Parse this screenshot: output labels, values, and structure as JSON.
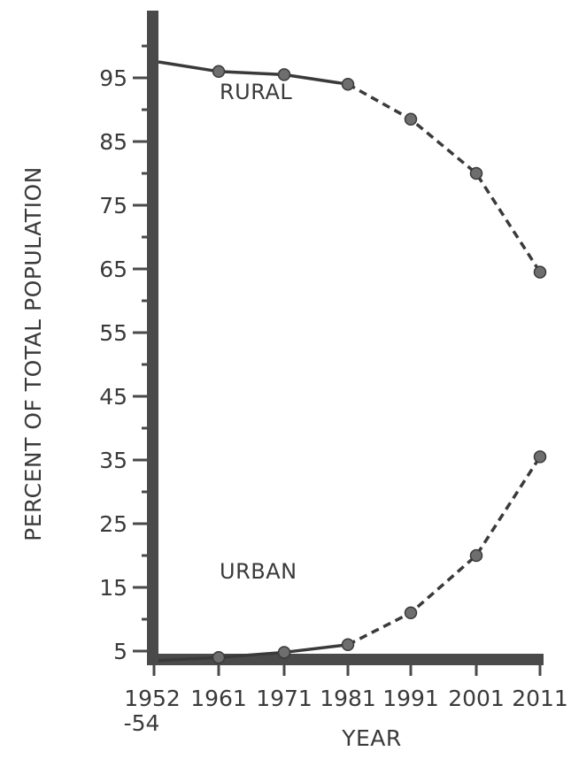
{
  "chart_data": {
    "type": "line",
    "title": "",
    "xlabel": "YEAR",
    "ylabel": "PERCENT OF TOTAL POPULATION",
    "x_tick_labels": [
      {
        "line1": "1952",
        "line2": "-54"
      },
      {
        "line1": "1961",
        "line2": ""
      },
      {
        "line1": "1971",
        "line2": ""
      },
      {
        "line1": "1981",
        "line2": ""
      },
      {
        "line1": "1991",
        "line2": ""
      },
      {
        "line1": "2001",
        "line2": ""
      },
      {
        "line1": "2011",
        "line2": ""
      }
    ],
    "x": [
      1953,
      1961,
      1971,
      1981,
      1991,
      2001,
      2011
    ],
    "y_ticks": [
      5,
      15,
      25,
      35,
      45,
      55,
      65,
      75,
      85,
      95
    ],
    "ylim": [
      0,
      100
    ],
    "grid": false,
    "legend": "none",
    "solid_through_x": 1981,
    "series": [
      {
        "name": "RURAL",
        "values": [
          97.5,
          96,
          95.5,
          94,
          88.5,
          80,
          64.5
        ],
        "point_markers": [
          false,
          true,
          true,
          true,
          true,
          true,
          true
        ]
      },
      {
        "name": "URBAN",
        "values": [
          3.5,
          4,
          4.8,
          6,
          11,
          20,
          35.5
        ],
        "point_markers": [
          false,
          true,
          true,
          true,
          true,
          true,
          true
        ]
      }
    ],
    "colors": {
      "ink": "#3a3a3a",
      "marker": "#6e6e6e",
      "axis": "#4a4a4a"
    }
  }
}
